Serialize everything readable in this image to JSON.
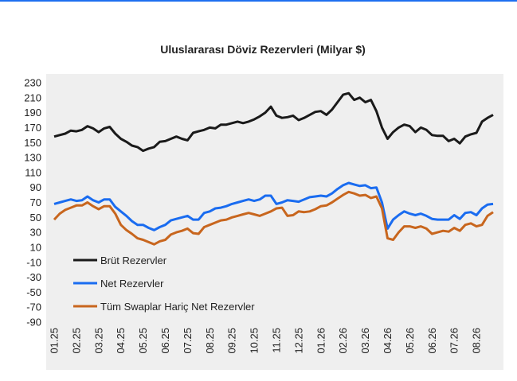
{
  "chart_data": {
    "type": "line",
    "title": "Uluslararası  Döviz Rezervleri  (Milyar $)",
    "categories": [
      "01.25",
      null,
      null,
      null,
      "02.25",
      null,
      null,
      null,
      "03.25",
      null,
      null,
      null,
      "04.25",
      null,
      null,
      null,
      "05.25",
      null,
      null,
      null,
      "06.25",
      null,
      null,
      null,
      "07.25",
      null,
      null,
      null,
      "08.25",
      null,
      null,
      null,
      "09.25",
      null,
      null,
      null,
      "10.25",
      null,
      null,
      null,
      "11.25",
      null,
      null,
      null,
      "12.25",
      null,
      null,
      null,
      "01.26",
      null,
      null,
      null,
      "02.26",
      null,
      null,
      null,
      "03.26",
      null,
      null,
      null,
      "04.26",
      null,
      null,
      null,
      "05.26",
      null,
      null,
      null,
      "06.26",
      null,
      null,
      null,
      "07.26",
      null,
      null,
      null,
      "08.26",
      null,
      null,
      null
    ],
    "series": [
      {
        "name": "Brüt Rezervler",
        "color": "#1a1a1a",
        "values": [
          158,
          160,
          162,
          166,
          165,
          167,
          172,
          169,
          164,
          169,
          171,
          162,
          155,
          151,
          146,
          144,
          139,
          142,
          144,
          151,
          152,
          155,
          158,
          155,
          153,
          163,
          165,
          167,
          170,
          169,
          174,
          174,
          176,
          178,
          176,
          178,
          181,
          185,
          190,
          198,
          186,
          183,
          184,
          186,
          180,
          183,
          187,
          191,
          192,
          187,
          194,
          204,
          214,
          216,
          207,
          210,
          204,
          207,
          192,
          170,
          155,
          164,
          170,
          174,
          172,
          164,
          170,
          167,
          160,
          159,
          159,
          152,
          155,
          149,
          158,
          161,
          163,
          178,
          183,
          187
        ]
      },
      {
        "name": "Net Rezervler",
        "color": "#1a6cf0",
        "values": [
          68,
          70,
          72,
          74,
          72,
          73,
          78,
          73,
          70,
          74,
          74,
          64,
          58,
          52,
          45,
          40,
          40,
          36,
          33,
          37,
          40,
          46,
          48,
          50,
          52,
          47,
          47,
          56,
          58,
          62,
          63,
          65,
          68,
          70,
          72,
          74,
          72,
          74,
          79,
          79,
          68,
          70,
          73,
          72,
          71,
          74,
          77,
          78,
          79,
          78,
          82,
          88,
          93,
          96,
          94,
          92,
          93,
          89,
          90,
          70,
          35,
          47,
          53,
          58,
          55,
          53,
          55,
          52,
          48,
          47,
          47,
          47,
          53,
          48,
          56,
          57,
          53,
          62,
          67,
          68
        ]
      },
      {
        "name": "Tüm Swaplar Hariç Net Rezervler",
        "color": "#c8661e",
        "values": [
          47,
          55,
          60,
          63,
          66,
          66,
          70,
          65,
          61,
          65,
          65,
          55,
          40,
          33,
          28,
          22,
          20,
          17,
          14,
          18,
          20,
          27,
          30,
          32,
          35,
          29,
          28,
          37,
          40,
          43,
          46,
          47,
          50,
          52,
          54,
          56,
          54,
          52,
          55,
          58,
          62,
          63,
          52,
          53,
          58,
          57,
          58,
          61,
          65,
          66,
          70,
          75,
          80,
          84,
          82,
          79,
          80,
          76,
          78,
          62,
          22,
          20,
          30,
          38,
          38,
          36,
          38,
          35,
          28,
          30,
          32,
          31,
          36,
          32,
          40,
          42,
          38,
          40,
          52,
          57
        ]
      }
    ],
    "ylim": [
      -90,
      230
    ],
    "yticks": [
      230,
      210,
      190,
      170,
      150,
      130,
      110,
      90,
      70,
      50,
      30,
      10,
      -10,
      -30,
      -50,
      -70,
      -90
    ],
    "legend": "lower-left"
  }
}
